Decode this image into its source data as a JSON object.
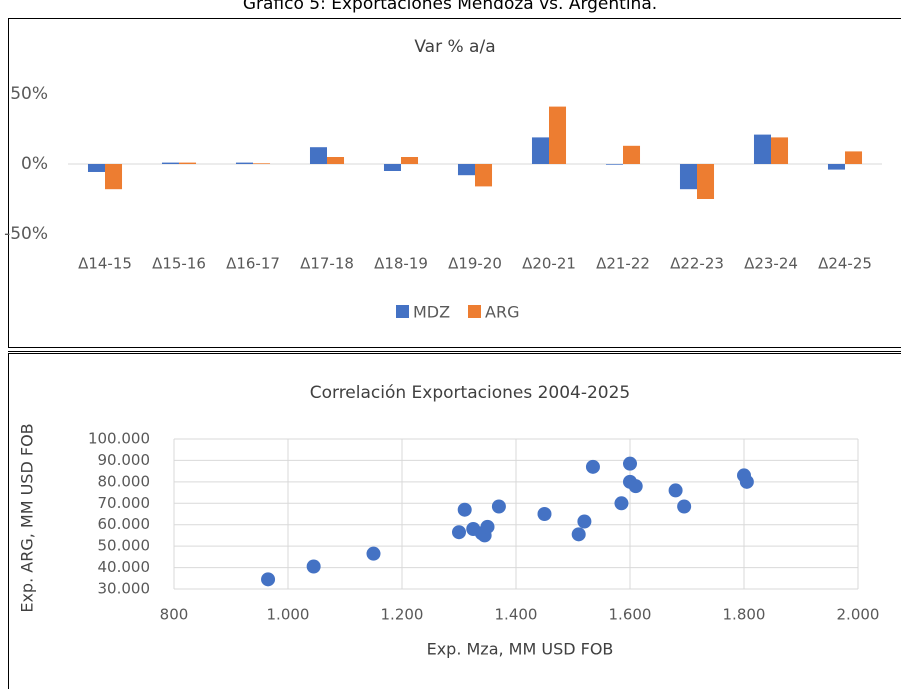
{
  "title": "Gráfico 5: Exportaciones Mendoza vs. Argentina.",
  "chart_data": [
    {
      "type": "bar",
      "title": "Var % a/a",
      "categories": [
        "Δ14-15",
        "Δ15-16",
        "Δ16-17",
        "Δ17-18",
        "Δ18-19",
        "Δ19-20",
        "Δ20-21",
        "Δ21-22",
        "Δ22-23",
        "Δ23-24",
        "Δ24-25"
      ],
      "series": [
        {
          "name": "MDZ",
          "color": "#4472c4",
          "values": [
            -5.7,
            1,
            1,
            12,
            -5,
            -8,
            19,
            -0.5,
            -18,
            21,
            -4
          ]
        },
        {
          "name": "ARG",
          "color": "#ed7d31",
          "values": [
            -18,
            1,
            0.5,
            5,
            5,
            -16,
            41,
            13,
            -25,
            19,
            9
          ]
        }
      ],
      "ylim": [
        -50,
        50
      ],
      "yticks": [
        {
          "value": -50,
          "label": "-50%"
        },
        {
          "value": 0,
          "label": "0%"
        },
        {
          "value": 50,
          "label": "50%"
        }
      ],
      "grid": false,
      "legend": "bottom"
    },
    {
      "type": "scatter",
      "title": "Correlación Exportaciones 2004-2025",
      "x_label": "Exp. Mza, MM USD FOB",
      "y_label": "Exp. ARG, MM USD FOB",
      "color": "#4472c4",
      "x": [
        965,
        1045,
        1150,
        1300,
        1310,
        1325,
        1340,
        1345,
        1350,
        1370,
        1450,
        1510,
        1520,
        1535,
        1585,
        1600,
        1600,
        1610,
        1680,
        1695,
        1800,
        1805
      ],
      "values": [
        34500,
        40500,
        46500,
        56500,
        67000,
        58000,
        56000,
        55000,
        59000,
        68500,
        65000,
        55500,
        61500,
        87000,
        70000,
        88500,
        80000,
        78000,
        76000,
        68500,
        83000,
        80000
      ],
      "xlim": [
        800,
        2000
      ],
      "xticks": [
        800,
        {
          "value": 1000,
          "label": "1.000"
        },
        {
          "value": 1200,
          "label": "1.200"
        },
        {
          "value": 1400,
          "label": "1.400"
        },
        {
          "value": 1600,
          "label": "1.600"
        },
        {
          "value": 1800,
          "label": "1.800"
        },
        {
          "value": 2000,
          "label": "2.000"
        }
      ],
      "ylim": [
        30000,
        100000
      ],
      "yticks": [
        {
          "value": 30000,
          "label": "30.000"
        },
        {
          "value": 40000,
          "label": "40.000"
        },
        {
          "value": 50000,
          "label": "50.000"
        },
        {
          "value": 60000,
          "label": "60.000"
        },
        {
          "value": 70000,
          "label": "70.000"
        },
        {
          "value": 80000,
          "label": "80.000"
        },
        {
          "value": 90000,
          "label": "90.000"
        },
        {
          "value": 100000,
          "label": "100.000"
        }
      ],
      "grid": true
    }
  ]
}
